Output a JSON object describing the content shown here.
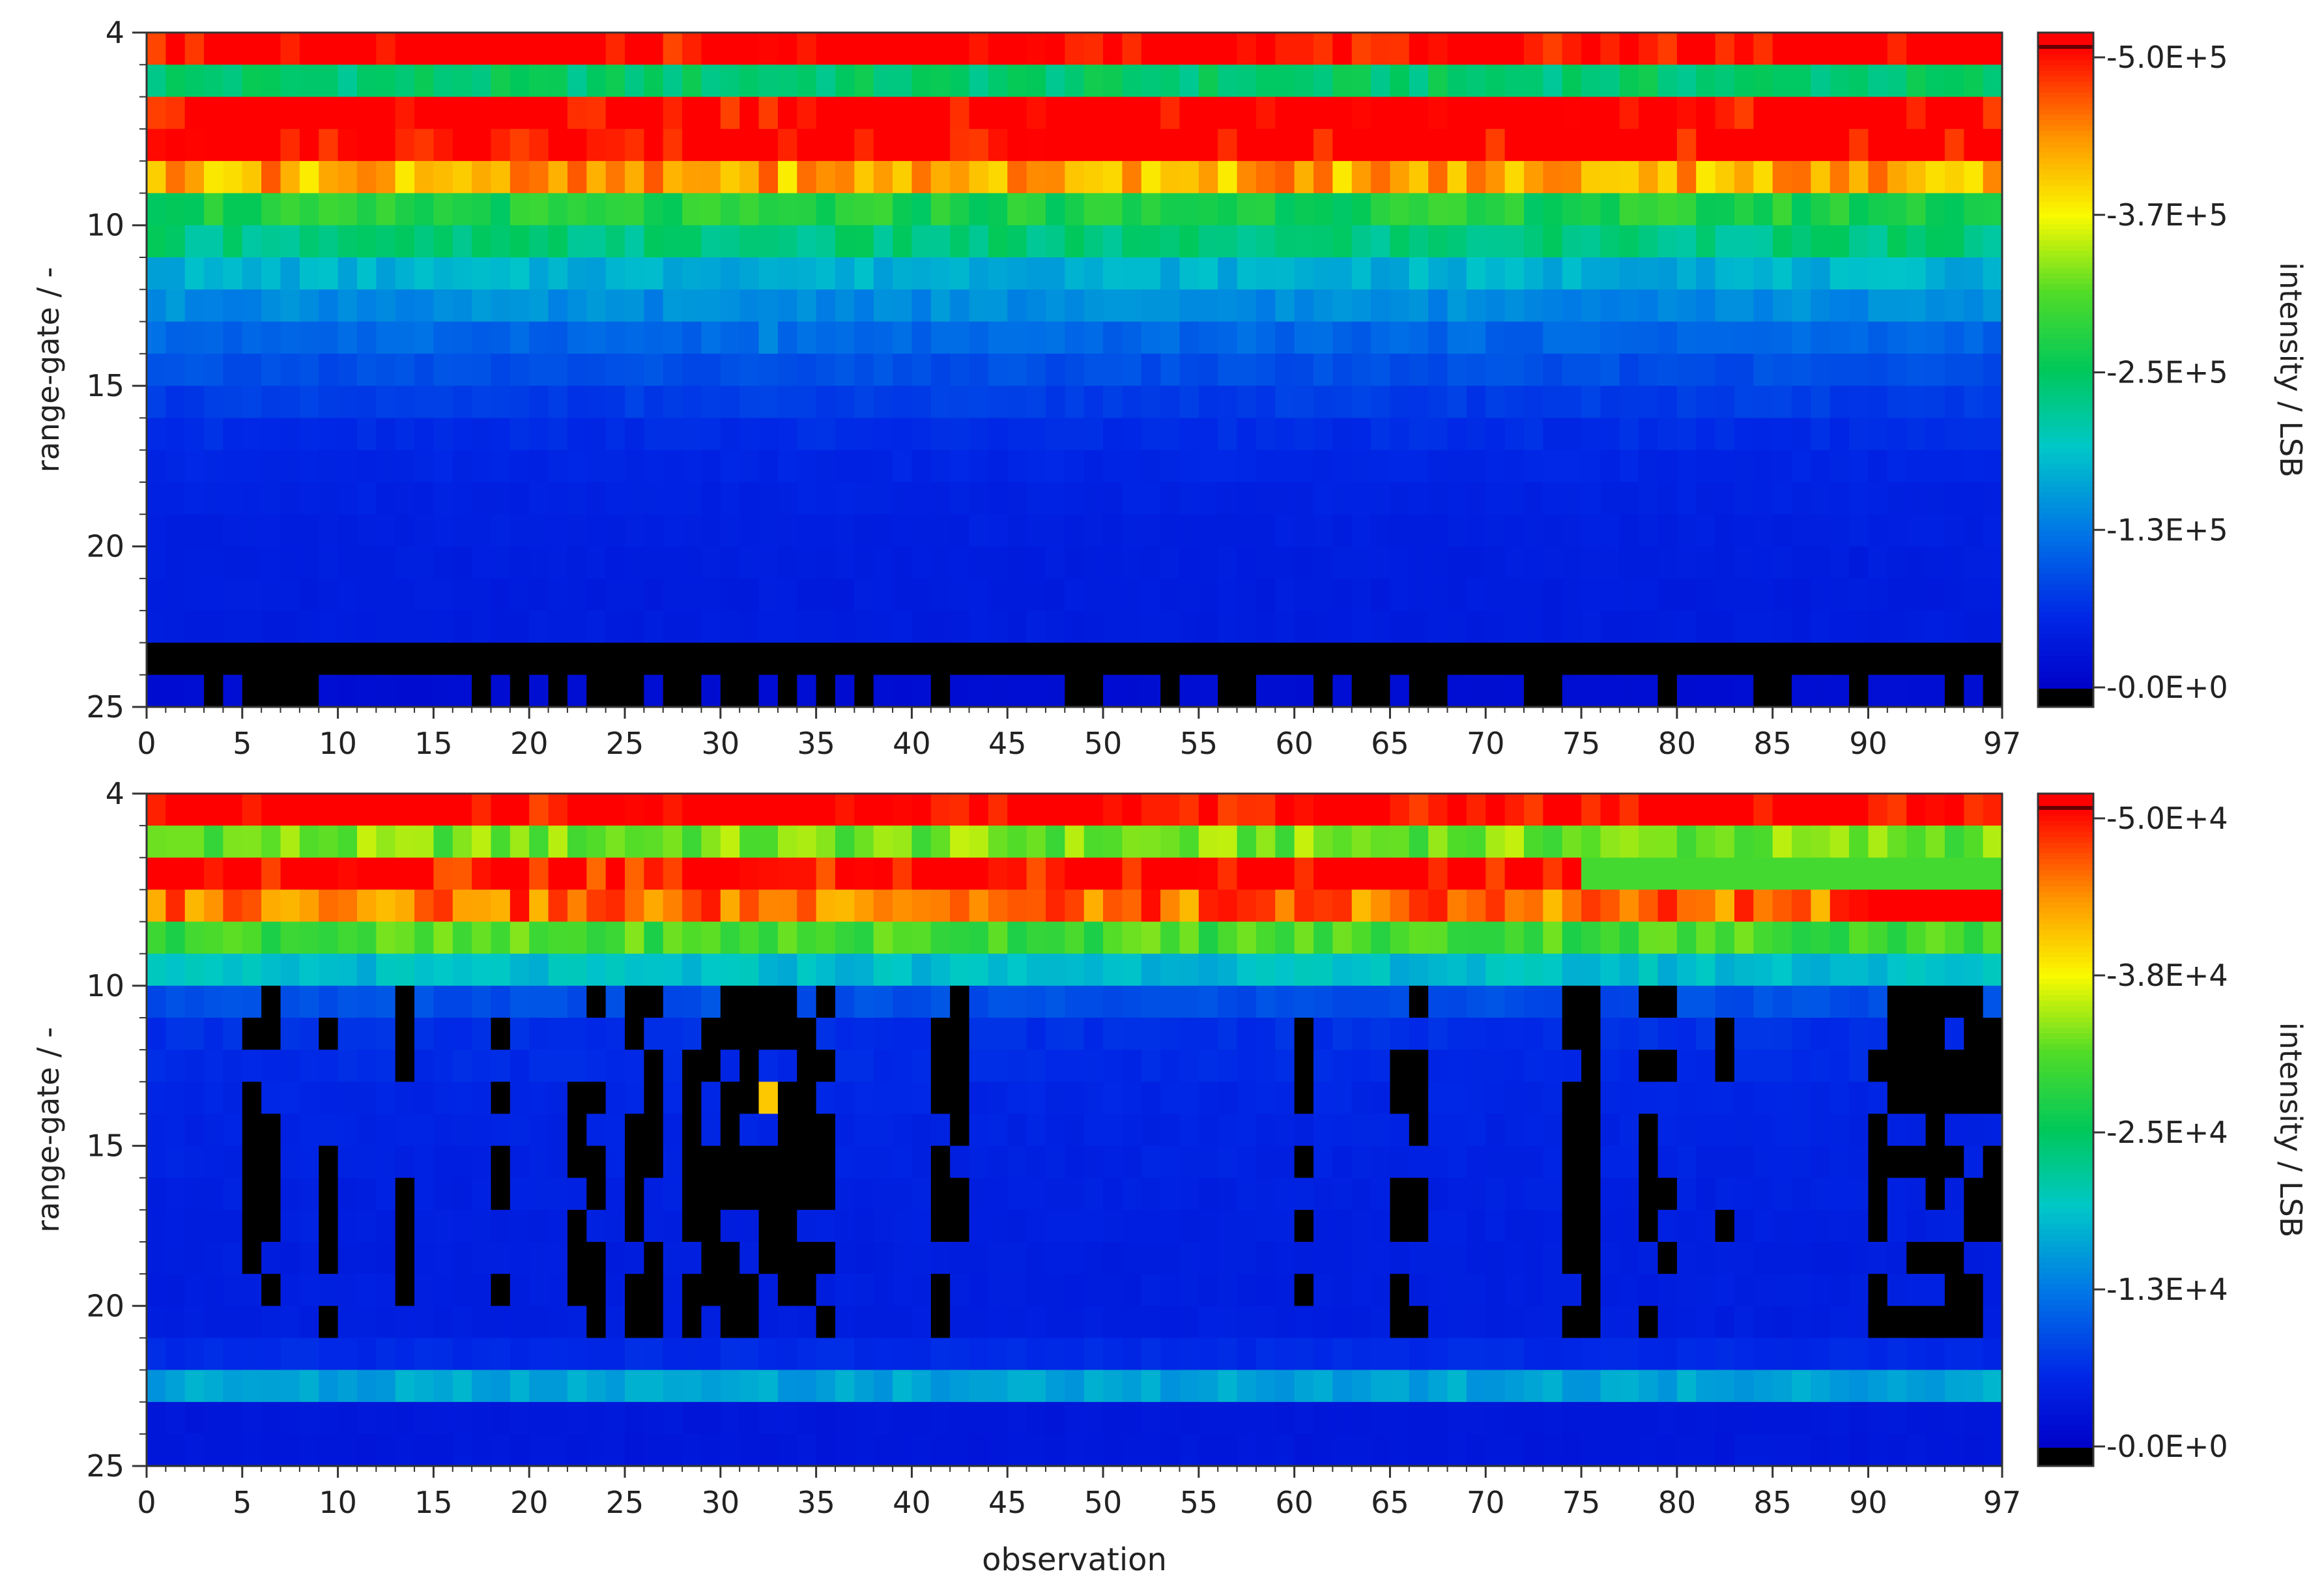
{
  "chart_data": [
    {
      "type": "heatmap",
      "xlabel": "",
      "ylabel": "range-gate / -",
      "colorbar_label": "intensity / LSB",
      "x_range": [
        0,
        97
      ],
      "y_range": [
        4,
        25
      ],
      "x_ticks": [
        "0",
        "5",
        "10",
        "15",
        "20",
        "25",
        "30",
        "35",
        "40",
        "45",
        "50",
        "55",
        "60",
        "65",
        "70",
        "75",
        "80",
        "85",
        "90",
        "97"
      ],
      "y_ticks": [
        "4",
        "10",
        "15",
        "20",
        "25"
      ],
      "colorbar_ticks": [
        "-5.0E+5",
        "-3.7E+5",
        "-2.5E+5",
        "-1.3E+5",
        "-0.0E+0"
      ],
      "colorbar_range": [
        0,
        500000
      ],
      "profile": {
        "4": 520000,
        "5": 240000,
        "6": 520000,
        "7": 520000,
        "8": 420000,
        "9": 270000,
        "10": 230000,
        "11": 170000,
        "12": 140000,
        "13": 110000,
        "14": 90000,
        "15": 75000,
        "16": 62000,
        "17": 55000,
        "18": 50000,
        "19": 46000,
        "20": 44000,
        "21": 42000,
        "22": 42000,
        "23": 0,
        "24": 20000
      },
      "features": [
        {
          "gate": 13,
          "obs": 32,
          "value": 140000
        },
        {
          "gate": 14,
          "obs": 33,
          "value": 90000
        },
        {
          "gate": 23,
          "obs_ranges": [
            [
              1,
              8
            ],
            [
              9,
              10
            ],
            [
              11,
              12
            ],
            [
              13,
              14
            ],
            [
              15,
              22
            ],
            [
              23,
              34
            ],
            [
              35,
              36
            ],
            [
              37,
              41
            ],
            [
              46,
              51
            ],
            [
              53,
              62
            ],
            [
              64,
              70
            ],
            [
              71,
              75
            ],
            [
              76,
              77
            ],
            [
              78,
              80
            ],
            [
              83,
              86
            ],
            [
              87,
              93
            ],
            [
              94,
              96
            ]
          ],
          "value": 0
        },
        {
          "gate": 24,
          "obs_ranges": [
            [
              3,
              4
            ],
            [
              5,
              9
            ],
            [
              17,
              18
            ],
            [
              19,
              20
            ],
            [
              21,
              22
            ],
            [
              23,
              26
            ],
            [
              27,
              29
            ],
            [
              30,
              32
            ],
            [
              33,
              34
            ],
            [
              35,
              36
            ],
            [
              37,
              38
            ],
            [
              41,
              42
            ],
            [
              48,
              50
            ],
            [
              53,
              54
            ],
            [
              56,
              58
            ],
            [
              61,
              62
            ],
            [
              63,
              65
            ],
            [
              66,
              68
            ],
            [
              72,
              74
            ],
            [
              79,
              80
            ],
            [
              84,
              86
            ],
            [
              89,
              90
            ],
            [
              94,
              95
            ],
            [
              96,
              97
            ]
          ],
          "value": 0
        }
      ]
    },
    {
      "type": "heatmap",
      "xlabel": "observation",
      "ylabel": "range-gate / -",
      "colorbar_label": "intensity / LSB",
      "x_range": [
        0,
        97
      ],
      "y_range": [
        4,
        25
      ],
      "x_ticks": [
        "0",
        "5",
        "10",
        "15",
        "20",
        "25",
        "30",
        "35",
        "40",
        "45",
        "50",
        "55",
        "60",
        "65",
        "70",
        "75",
        "80",
        "85",
        "90",
        "97"
      ],
      "y_ticks": [
        "4",
        "10",
        "15",
        "20",
        "25"
      ],
      "colorbar_ticks": [
        "-5.0E+4",
        "-3.8E+4",
        "-2.5E+4",
        "-1.3E+4",
        "-0.0E+0"
      ],
      "colorbar_range": [
        0,
        50000
      ],
      "profile": {
        "4": 52000,
        "5": 32000,
        "6": 50000,
        "7": 45000,
        "8": 30000,
        "9": 18000,
        "10": 9000,
        "11": 6500,
        "12": 6000,
        "13": 5500,
        "14": 5200,
        "15": 5000,
        "16": 4800,
        "17": 4600,
        "18": 4500,
        "19": 4500,
        "20": 4500,
        "21": 6000,
        "22": 16000,
        "23": 3500,
        "24": 3500
      },
      "features": [
        {
          "gate": 13,
          "obs": 32,
          "value": 40000
        },
        {
          "gate": 13,
          "obs": 31,
          "value": 15000
        },
        {
          "gate": 14,
          "obs": 33,
          "value": 20000
        },
        {
          "gate": 7,
          "obs_ranges": [
            [
              90,
              97
            ]
          ],
          "value": 52000
        },
        {
          "gate": 6,
          "obs_ranges": [
            [
              75,
              97
            ]
          ],
          "value": 30000
        },
        {
          "gate": "10-20",
          "obs_ranges": [
            [
              5,
              7
            ],
            [
              9,
              10
            ],
            [
              13,
              14
            ],
            [
              18,
              19
            ],
            [
              22,
              24
            ],
            [
              25,
              27
            ],
            [
              28,
              36
            ],
            [
              41,
              43
            ],
            [
              60,
              61
            ],
            [
              65,
              67
            ],
            [
              74,
              76
            ],
            [
              78,
              80
            ],
            [
              82,
              83
            ],
            [
              90,
              97
            ]
          ],
          "value": 0
        }
      ]
    }
  ]
}
